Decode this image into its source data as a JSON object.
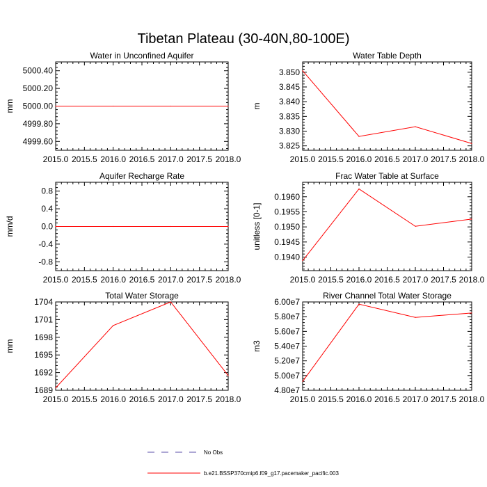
{
  "figure": {
    "title": "Tibetan Plateau (30-40N,80-100E)"
  },
  "legend": {
    "items": [
      {
        "label": "No Obs",
        "style": "dashed",
        "color": "#5b4fa8"
      },
      {
        "label": "b.e21.BSSP370cmip6.f09_g17.pacemaker_pacific.003",
        "style": "solid",
        "color": "#ff0000"
      }
    ]
  },
  "colors": {
    "series": "#ff0000",
    "axis": "#000000"
  },
  "chart_data": [
    {
      "type": "line",
      "title": "Water in Unconfined Aquifer",
      "xlabel": "",
      "ylabel": "mm",
      "xlim": [
        2015.0,
        2018.0
      ],
      "ylim": [
        4999.5,
        5000.5
      ],
      "xticks": [
        "2015.0",
        "2015.5",
        "2016.0",
        "2016.5",
        "2017.0",
        "2017.5",
        "2018.0"
      ],
      "yticks": [
        {
          "value": 4999.6,
          "label": "4999.60"
        },
        {
          "value": 4999.8,
          "label": "4999.80"
        },
        {
          "value": 5000.0,
          "label": "5000.00"
        },
        {
          "value": 5000.2,
          "label": "5000.20"
        },
        {
          "value": 5000.4,
          "label": "5000.40"
        }
      ],
      "x": [
        2015.0,
        2016.0,
        2017.0,
        2018.0
      ],
      "y": [
        5000.0,
        5000.0,
        5000.0,
        5000.0
      ]
    },
    {
      "type": "line",
      "title": "Water Table Depth",
      "xlabel": "",
      "ylabel": "m",
      "xlim": [
        2015.0,
        2018.0
      ],
      "ylim": [
        3.8235,
        3.8535
      ],
      "xticks": [
        "2015.0",
        "2015.5",
        "2016.0",
        "2016.5",
        "2017.0",
        "2017.5",
        "2018.0"
      ],
      "yticks": [
        {
          "value": 3.825,
          "label": "3.825"
        },
        {
          "value": 3.83,
          "label": "3.830"
        },
        {
          "value": 3.835,
          "label": "3.835"
        },
        {
          "value": 3.84,
          "label": "3.840"
        },
        {
          "value": 3.845,
          "label": "3.845"
        },
        {
          "value": 3.85,
          "label": "3.850"
        }
      ],
      "x": [
        2015.0,
        2016.0,
        2017.0,
        2018.0
      ],
      "y": [
        3.8505,
        3.8282,
        3.8315,
        3.8258
      ]
    },
    {
      "type": "line",
      "title": "Aquifer Recharge Rate",
      "xlabel": "",
      "ylabel": "mm/d",
      "xlim": [
        2015.0,
        2018.0
      ],
      "ylim": [
        -1.0,
        1.0
      ],
      "xticks": [
        "2015.0",
        "2015.5",
        "2016.0",
        "2016.5",
        "2017.0",
        "2017.5",
        "2018.0"
      ],
      "yticks": [
        {
          "value": -0.8,
          "label": "-0.8"
        },
        {
          "value": -0.4,
          "label": "-0.4"
        },
        {
          "value": 0.0,
          "label": "0.0"
        },
        {
          "value": 0.4,
          "label": "0.4"
        },
        {
          "value": 0.8,
          "label": "0.8"
        }
      ],
      "x": [
        2015.0,
        2016.0,
        2017.0,
        2018.0
      ],
      "y": [
        0.0,
        0.0,
        0.0,
        0.0
      ]
    },
    {
      "type": "line",
      "title": "Frac Water Table at Surface",
      "xlabel": "",
      "ylabel": "unitless [0-1]",
      "xlim": [
        2015.0,
        2018.0
      ],
      "ylim": [
        0.19355,
        0.19648
      ],
      "xticks": [
        "2015.0",
        "2015.5",
        "2016.0",
        "2016.5",
        "2017.0",
        "2017.5",
        "2018.0"
      ],
      "yticks": [
        {
          "value": 0.194,
          "label": "0.1940"
        },
        {
          "value": 0.1945,
          "label": "0.1945"
        },
        {
          "value": 0.195,
          "label": "0.1950"
        },
        {
          "value": 0.1955,
          "label": "0.1955"
        },
        {
          "value": 0.196,
          "label": "0.1960"
        }
      ],
      "x": [
        2015.0,
        2016.0,
        2017.0,
        2018.0
      ],
      "y": [
        0.19388,
        0.19626,
        0.19502,
        0.19526
      ]
    },
    {
      "type": "line",
      "title": "Total Water Storage",
      "xlabel": "",
      "ylabel": "mm",
      "xlim": [
        2015.0,
        2018.0
      ],
      "ylim": [
        1689.0,
        1704.0
      ],
      "xticks": [
        "2015.0",
        "2015.5",
        "2016.0",
        "2016.5",
        "2017.0",
        "2017.5",
        "2018.0"
      ],
      "yticks": [
        {
          "value": 1689,
          "label": "1689"
        },
        {
          "value": 1692,
          "label": "1692"
        },
        {
          "value": 1695,
          "label": "1695"
        },
        {
          "value": 1698,
          "label": "1698"
        },
        {
          "value": 1701,
          "label": "1701"
        },
        {
          "value": 1704,
          "label": "1704"
        }
      ],
      "x": [
        2015.0,
        2016.0,
        2017.0,
        2018.0
      ],
      "y": [
        1689.4,
        1700.0,
        1704.0,
        1691.5
      ]
    },
    {
      "type": "line",
      "title": "River Channel Total Water Storage",
      "xlabel": "",
      "ylabel": "m3",
      "xlim": [
        2015.0,
        2018.0
      ],
      "ylim": [
        48000000,
        60000000
      ],
      "xticks": [
        "2015.0",
        "2015.5",
        "2016.0",
        "2016.5",
        "2017.0",
        "2017.5",
        "2018.0"
      ],
      "yticks": [
        {
          "value": 48000000,
          "label": "4.80e7"
        },
        {
          "value": 50000000,
          "label": "5.00e7"
        },
        {
          "value": 52000000,
          "label": "5.20e7"
        },
        {
          "value": 54000000,
          "label": "5.40e7"
        },
        {
          "value": 56000000,
          "label": "5.60e7"
        },
        {
          "value": 58000000,
          "label": "5.80e7"
        },
        {
          "value": 60000000,
          "label": "6.00e7"
        }
      ],
      "x": [
        2015.0,
        2016.0,
        2017.0,
        2018.0
      ],
      "y": [
        49200000,
        59700000,
        57900000,
        58500000
      ]
    }
  ]
}
